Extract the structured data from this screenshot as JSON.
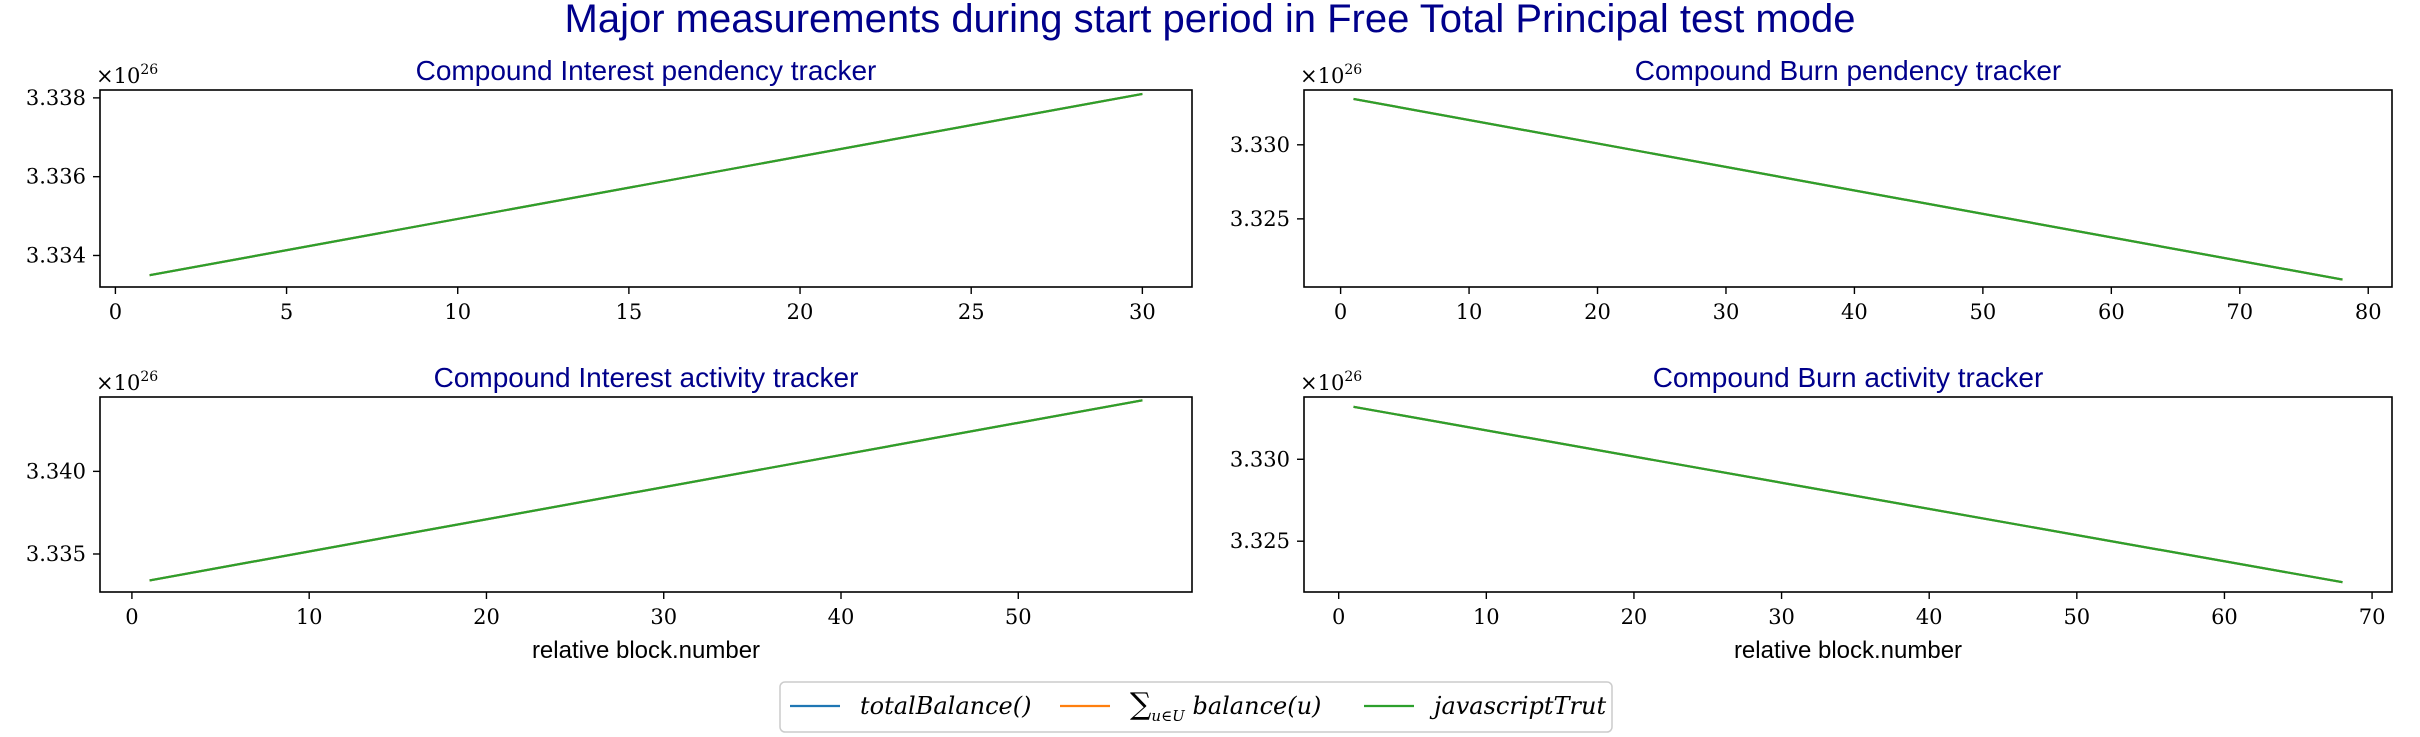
{
  "figure": {
    "suptitle": "Major measurements during start period in Free Total Principal test mode",
    "legend": [
      {
        "label": "totalBalance()",
        "color": "#1f77b4"
      },
      {
        "label": "∑u∈U balance(u)",
        "color": "#ff7f0e"
      },
      {
        "label": "javascriptTrut",
        "color": "#2ca02c"
      }
    ]
  },
  "chart_data": [
    {
      "type": "line",
      "title": "Compound Interest pendency tracker",
      "xlabel": "",
      "offset_text": "×10^26",
      "xlim": [
        -0.45,
        31.45
      ],
      "ylim": [
        3.3332,
        3.3382
      ],
      "xticks": [
        0,
        5,
        10,
        15,
        20,
        25,
        30
      ],
      "yticks": [
        3.334,
        3.336,
        3.338
      ],
      "ytick_labels": [
        "3.334",
        "3.336",
        "3.338"
      ],
      "series": [
        {
          "color": "#1f77b4",
          "x": [
            1,
            30
          ],
          "y": [
            3.3335,
            3.3381
          ]
        },
        {
          "color": "#ff7f0e",
          "x": [
            1,
            30
          ],
          "y": [
            3.3335,
            3.3381
          ]
        },
        {
          "color": "#2ca02c",
          "x": [
            1,
            30
          ],
          "y": [
            3.3335,
            3.3381
          ]
        }
      ]
    },
    {
      "type": "line",
      "title": "Compound Burn pendency tracker",
      "xlabel": "",
      "offset_text": "×10^26",
      "xlim": [
        -2.85,
        81.85
      ],
      "ylim": [
        3.3204,
        3.3337
      ],
      "xticks": [
        0,
        10,
        20,
        30,
        40,
        50,
        60,
        70,
        80
      ],
      "yticks": [
        3.325,
        3.33
      ],
      "ytick_labels": [
        "3.325",
        "3.330"
      ],
      "series": [
        {
          "color": "#1f77b4",
          "x": [
            1,
            78
          ],
          "y": [
            3.3331,
            3.3209
          ]
        },
        {
          "color": "#ff7f0e",
          "x": [
            1,
            78
          ],
          "y": [
            3.3331,
            3.3209
          ]
        },
        {
          "color": "#2ca02c",
          "x": [
            1,
            78
          ],
          "y": [
            3.3331,
            3.3209
          ]
        }
      ]
    },
    {
      "type": "line",
      "title": "Compound Interest activity tracker",
      "xlabel": "relative block.number",
      "offset_text": "×10^26",
      "xlim": [
        -1.8,
        59.8
      ],
      "ylim": [
        3.3327,
        3.3445
      ],
      "xticks": [
        0,
        10,
        20,
        30,
        40,
        50
      ],
      "yticks": [
        3.335,
        3.34
      ],
      "ytick_labels": [
        "3.335",
        "3.340"
      ],
      "series": [
        {
          "color": "#1f77b4",
          "x": [
            1,
            57
          ],
          "y": [
            3.3334,
            3.3443
          ]
        },
        {
          "color": "#ff7f0e",
          "x": [
            1,
            57
          ],
          "y": [
            3.3334,
            3.3443
          ]
        },
        {
          "color": "#2ca02c",
          "x": [
            1,
            57
          ],
          "y": [
            3.3334,
            3.3443
          ]
        }
      ]
    },
    {
      "type": "line",
      "title": "Compound Burn activity tracker",
      "xlabel": "relative block.number",
      "offset_text": "×10^26",
      "xlim": [
        -2.35,
        71.35
      ],
      "ylim": [
        3.3219,
        3.3338
      ],
      "xticks": [
        0,
        10,
        20,
        30,
        40,
        50,
        60,
        70
      ],
      "yticks": [
        3.325,
        3.33
      ],
      "ytick_labels": [
        "3.325",
        "3.330"
      ],
      "series": [
        {
          "color": "#1f77b4",
          "x": [
            1,
            68
          ],
          "y": [
            3.3332,
            3.3225
          ]
        },
        {
          "color": "#ff7f0e",
          "x": [
            1,
            68
          ],
          "y": [
            3.3332,
            3.3225
          ]
        },
        {
          "color": "#2ca02c",
          "x": [
            1,
            68
          ],
          "y": [
            3.3332,
            3.3225
          ]
        }
      ]
    }
  ]
}
